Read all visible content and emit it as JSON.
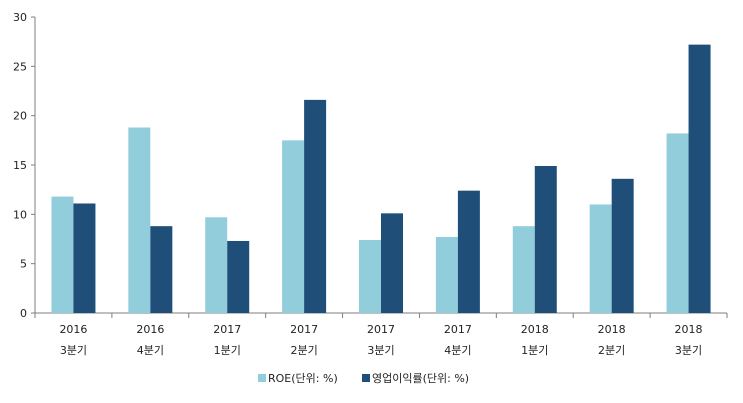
{
  "chart_data": {
    "type": "bar",
    "categories": [
      [
        "2016",
        "3분기"
      ],
      [
        "2016",
        "4분기"
      ],
      [
        "2017",
        "1분기"
      ],
      [
        "2017",
        "2분기"
      ],
      [
        "2017",
        "3분기"
      ],
      [
        "2017",
        "4분기"
      ],
      [
        "2018",
        "1분기"
      ],
      [
        "2018",
        "2분기"
      ],
      [
        "2018",
        "3분기"
      ]
    ],
    "series": [
      {
        "name": "ROE(단위: %)",
        "color": "#92cddc",
        "values": [
          11.8,
          18.8,
          9.7,
          17.5,
          7.4,
          7.7,
          8.8,
          11.0,
          18.2
        ]
      },
      {
        "name": "영업이익률(단위: %)",
        "color": "#1f4e79",
        "values": [
          11.1,
          8.8,
          7.3,
          21.6,
          10.1,
          12.4,
          14.9,
          13.6,
          27.2
        ]
      }
    ],
    "title": "",
    "xlabel": "",
    "ylabel": "",
    "ylim": [
      0,
      30
    ],
    "yticks": [
      0,
      5,
      10,
      15,
      20,
      25,
      30
    ],
    "grid": false,
    "legend_position": "bottom"
  }
}
